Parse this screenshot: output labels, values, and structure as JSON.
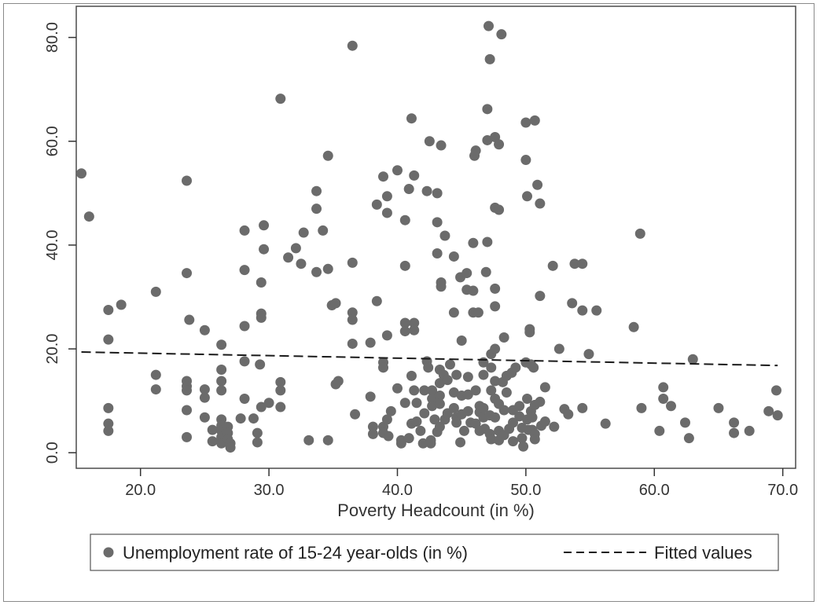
{
  "chart_data": {
    "type": "scatter",
    "xlabel": "Poverty Headcount  (in %)",
    "ylabel": "",
    "xlim": [
      15,
      71
    ],
    "ylim": [
      -3,
      86
    ],
    "x_ticks": [
      20,
      30,
      40,
      50,
      60,
      70
    ],
    "x_tick_labels": [
      "20.0",
      "30.0",
      "40.0",
      "50.0",
      "60.0",
      "70.0"
    ],
    "y_ticks": [
      0,
      20,
      40,
      60,
      80
    ],
    "y_tick_labels": [
      "0.0",
      "20.0",
      "40.0",
      "60.0",
      "80.0"
    ],
    "grid": false,
    "legend": {
      "placement": "bottom",
      "entries": [
        "Unemployment rate of 15-24 year-olds (in %)",
        "Fitted values"
      ]
    },
    "colors": {
      "points": "#6b6b6b",
      "fit": "#1a1a1a",
      "axis": "#333333"
    },
    "series": [
      {
        "name": "Unemployment rate of 15-24 year-olds (in %)",
        "type": "scatter",
        "points": [
          [
            15.4,
            53.8
          ],
          [
            16,
            45.5
          ],
          [
            17.5,
            27.5
          ],
          [
            17.5,
            21.8
          ],
          [
            17.5,
            8.6
          ],
          [
            17.5,
            5.6
          ],
          [
            17.5,
            4.2
          ],
          [
            18.5,
            28.5
          ],
          [
            21.2,
            31
          ],
          [
            21.2,
            15
          ],
          [
            21.2,
            12.2
          ],
          [
            23.6,
            52.4
          ],
          [
            23.6,
            34.6
          ],
          [
            23.6,
            13.8
          ],
          [
            23.6,
            12.8
          ],
          [
            23.6,
            12
          ],
          [
            23.6,
            8.2
          ],
          [
            23.6,
            3
          ],
          [
            23.8,
            25.6
          ],
          [
            25,
            23.6
          ],
          [
            25,
            12.2
          ],
          [
            25,
            10.6
          ],
          [
            25,
            6.8
          ],
          [
            25.6,
            4.4
          ],
          [
            25.6,
            2.2
          ],
          [
            26.3,
            20.8
          ],
          [
            26.3,
            16
          ],
          [
            26.3,
            13.8
          ],
          [
            26.3,
            12
          ],
          [
            26.3,
            6.4
          ],
          [
            26.3,
            5.2
          ],
          [
            26.3,
            4.2
          ],
          [
            26.3,
            3
          ],
          [
            26.3,
            1.8
          ],
          [
            26.8,
            5
          ],
          [
            26.8,
            3.8
          ],
          [
            26.8,
            2.6
          ],
          [
            27,
            1.8
          ],
          [
            27,
            1
          ],
          [
            27.8,
            6.6
          ],
          [
            28.1,
            42.8
          ],
          [
            28.1,
            35.2
          ],
          [
            28.1,
            24.4
          ],
          [
            28.1,
            17.6
          ],
          [
            28.1,
            10.4
          ],
          [
            28.8,
            6.6
          ],
          [
            29.1,
            3.8
          ],
          [
            29.1,
            2
          ],
          [
            29.3,
            17
          ],
          [
            29.4,
            32.8
          ],
          [
            29.4,
            26.8
          ],
          [
            29.4,
            26
          ],
          [
            29.4,
            8.8
          ],
          [
            29.6,
            43.8
          ],
          [
            29.6,
            39.2
          ],
          [
            30,
            9.6
          ],
          [
            30.9,
            68.2
          ],
          [
            30.9,
            13.6
          ],
          [
            30.9,
            12
          ],
          [
            30.9,
            8.8
          ],
          [
            31.5,
            37.6
          ],
          [
            32.1,
            39.4
          ],
          [
            32.5,
            36.4
          ],
          [
            32.7,
            42.4
          ],
          [
            33.1,
            2.4
          ],
          [
            33.7,
            50.4
          ],
          [
            33.7,
            47
          ],
          [
            33.7,
            34.8
          ],
          [
            34.2,
            42.8
          ],
          [
            34.6,
            57.2
          ],
          [
            34.6,
            35.4
          ],
          [
            34.6,
            2.4
          ],
          [
            34.9,
            28.4
          ],
          [
            35.2,
            28.8
          ],
          [
            35.2,
            13.2
          ],
          [
            35.4,
            13.8
          ],
          [
            36.5,
            78.4
          ],
          [
            36.5,
            36.6
          ],
          [
            36.5,
            27
          ],
          [
            36.5,
            25.6
          ],
          [
            36.5,
            21
          ],
          [
            36.7,
            7.4
          ],
          [
            37.9,
            21.2
          ],
          [
            37.9,
            10.8
          ],
          [
            38.1,
            5
          ],
          [
            38.1,
            3.6
          ],
          [
            38.4,
            47.8
          ],
          [
            38.4,
            29.2
          ],
          [
            38.9,
            53.2
          ],
          [
            38.9,
            17.4
          ],
          [
            38.9,
            16.4
          ],
          [
            38.9,
            5
          ],
          [
            38.9,
            3.8
          ],
          [
            39.2,
            49.4
          ],
          [
            39.2,
            46.2
          ],
          [
            39.2,
            22.6
          ],
          [
            39.2,
            6.4
          ],
          [
            39.3,
            3.2
          ],
          [
            39.5,
            8
          ],
          [
            40,
            12.4
          ],
          [
            40,
            54.4
          ],
          [
            40.3,
            2.4
          ],
          [
            40.3,
            1.8
          ],
          [
            40.6,
            44.8
          ],
          [
            40.6,
            36
          ],
          [
            40.6,
            25
          ],
          [
            40.6,
            23.4
          ],
          [
            40.6,
            9.6
          ],
          [
            40.9,
            50.8
          ],
          [
            40.9,
            2.8
          ],
          [
            41.1,
            64.4
          ],
          [
            41.1,
            14.8
          ],
          [
            41.1,
            5.6
          ],
          [
            41.3,
            53.4
          ],
          [
            41.3,
            25
          ],
          [
            41.3,
            23.6
          ],
          [
            41.3,
            12
          ],
          [
            41.5,
            9.6
          ],
          [
            41.5,
            6
          ],
          [
            41.8,
            4.2
          ],
          [
            42,
            1.8
          ],
          [
            42.1,
            12
          ],
          [
            42.1,
            7.6
          ],
          [
            42.3,
            50.4
          ],
          [
            42.3,
            17.6
          ],
          [
            42.4,
            16.4
          ],
          [
            42.5,
            60
          ],
          [
            42.6,
            2.4
          ],
          [
            42.6,
            1.8
          ],
          [
            42.7,
            12
          ],
          [
            42.7,
            10.4
          ],
          [
            42.7,
            9
          ],
          [
            42.9,
            6.4
          ],
          [
            43.1,
            50
          ],
          [
            43.1,
            44.4
          ],
          [
            43.1,
            38.4
          ],
          [
            43.1,
            4
          ],
          [
            43.3,
            16
          ],
          [
            43.3,
            13.4
          ],
          [
            43.3,
            11
          ],
          [
            43.3,
            9.4
          ],
          [
            43.3,
            5
          ],
          [
            43.4,
            59.2
          ],
          [
            43.4,
            32.8
          ],
          [
            43.4,
            32
          ],
          [
            43.6,
            15
          ],
          [
            43.7,
            41.8
          ],
          [
            43.7,
            6.4
          ],
          [
            43.9,
            14
          ],
          [
            43.9,
            7.6
          ],
          [
            44.1,
            17
          ],
          [
            44.4,
            37.8
          ],
          [
            44.4,
            27
          ],
          [
            44.4,
            11.6
          ],
          [
            44.4,
            8.6
          ],
          [
            44.6,
            15
          ],
          [
            44.6,
            6.8
          ],
          [
            44.6,
            5.8
          ],
          [
            44.9,
            33.8
          ],
          [
            44.9,
            2
          ],
          [
            45,
            11
          ],
          [
            45,
            21.6
          ],
          [
            45,
            7.4
          ],
          [
            45.2,
            4.2
          ],
          [
            45.4,
            34.6
          ],
          [
            45.4,
            31.4
          ],
          [
            45.5,
            14.6
          ],
          [
            45.5,
            11.2
          ],
          [
            45.5,
            8
          ],
          [
            45.7,
            5.8
          ],
          [
            45.9,
            27
          ],
          [
            45.9,
            40.4
          ],
          [
            45.9,
            31.2
          ],
          [
            46,
            57.2
          ],
          [
            46.1,
            58.2
          ],
          [
            46.1,
            12
          ],
          [
            46.1,
            5.6
          ],
          [
            46.3,
            27
          ],
          [
            46.4,
            9
          ],
          [
            46.4,
            7.8
          ],
          [
            46.4,
            4.2
          ],
          [
            46.7,
            17.4
          ],
          [
            46.7,
            15
          ],
          [
            46.7,
            8.6
          ],
          [
            46.7,
            6.8
          ],
          [
            46.8,
            4.6
          ],
          [
            46.9,
            34.8
          ],
          [
            47,
            66.2
          ],
          [
            47,
            60.2
          ],
          [
            47,
            40.6
          ],
          [
            47.1,
            82.2
          ],
          [
            47.2,
            75.8
          ],
          [
            47.2,
            7.2
          ],
          [
            47.2,
            3.6
          ],
          [
            47.3,
            19
          ],
          [
            47.3,
            16.4
          ],
          [
            47.3,
            12
          ],
          [
            47.3,
            2.6
          ],
          [
            47.6,
            60.8
          ],
          [
            47.6,
            47.2
          ],
          [
            47.6,
            31.6
          ],
          [
            47.6,
            28.2
          ],
          [
            47.6,
            20
          ],
          [
            47.6,
            13.8
          ],
          [
            47.6,
            10.4
          ],
          [
            47.6,
            6.8
          ],
          [
            47.9,
            59.4
          ],
          [
            47.9,
            46.8
          ],
          [
            47.9,
            9.4
          ],
          [
            47.9,
            4.2
          ],
          [
            47.9,
            2.4
          ],
          [
            48.1,
            80.6
          ],
          [
            48.2,
            13.6
          ],
          [
            48.3,
            22.2
          ],
          [
            48.3,
            8.2
          ],
          [
            48.3,
            3.4
          ],
          [
            48.5,
            14.8
          ],
          [
            48.5,
            11.6
          ],
          [
            48.7,
            4.6
          ],
          [
            48.9,
            15.4
          ],
          [
            49,
            8.2
          ],
          [
            49,
            5.8
          ],
          [
            49,
            2.2
          ],
          [
            49.2,
            16.4
          ],
          [
            49.5,
            9
          ],
          [
            49.5,
            7
          ],
          [
            49.7,
            4.8
          ],
          [
            49.7,
            2.8
          ],
          [
            49.8,
            1.2
          ],
          [
            50,
            56.4
          ],
          [
            50,
            63.6
          ],
          [
            50,
            17.4
          ],
          [
            50.1,
            49.4
          ],
          [
            50.1,
            10.4
          ],
          [
            50.1,
            6.4
          ],
          [
            50.2,
            4.4
          ],
          [
            50.3,
            23.8
          ],
          [
            50.3,
            23.2
          ],
          [
            50.4,
            17
          ],
          [
            50.4,
            8
          ],
          [
            50.5,
            6.8
          ],
          [
            50.5,
            4.4
          ],
          [
            50.6,
            16.4
          ],
          [
            50.7,
            64
          ],
          [
            50.7,
            9.2
          ],
          [
            50.7,
            3.6
          ],
          [
            50.7,
            2.6
          ],
          [
            50.9,
            51.6
          ],
          [
            51.1,
            48
          ],
          [
            51.1,
            30.2
          ],
          [
            51.1,
            9.8
          ],
          [
            51.2,
            5.2
          ],
          [
            51.5,
            12.6
          ],
          [
            51.5,
            6
          ],
          [
            52.1,
            36
          ],
          [
            52.2,
            5
          ],
          [
            52.6,
            20
          ],
          [
            53,
            8.4
          ],
          [
            53.3,
            7.4
          ],
          [
            53.6,
            28.8
          ],
          [
            53.8,
            36.4
          ],
          [
            54.4,
            36.4
          ],
          [
            54.4,
            27.4
          ],
          [
            54.4,
            8.6
          ],
          [
            54.9,
            19
          ],
          [
            55.5,
            27.4
          ],
          [
            56.2,
            5.6
          ],
          [
            58.4,
            24.2
          ],
          [
            58.9,
            42.2
          ],
          [
            59,
            8.6
          ],
          [
            60.4,
            4.2
          ],
          [
            60.7,
            12.6
          ],
          [
            60.7,
            10.4
          ],
          [
            61.3,
            9
          ],
          [
            62.4,
            5.8
          ],
          [
            62.7,
            2.8
          ],
          [
            63,
            18
          ],
          [
            65,
            8.6
          ],
          [
            66.2,
            5.8
          ],
          [
            66.2,
            3.8
          ],
          [
            67.4,
            4.2
          ],
          [
            68.9,
            8
          ],
          [
            69.5,
            12
          ],
          [
            69.6,
            7.2
          ]
        ]
      },
      {
        "name": "Fitted values",
        "type": "line",
        "style": "dashed",
        "x": [
          15.4,
          69.6
        ],
        "y": [
          19.4,
          16.8
        ]
      }
    ]
  }
}
